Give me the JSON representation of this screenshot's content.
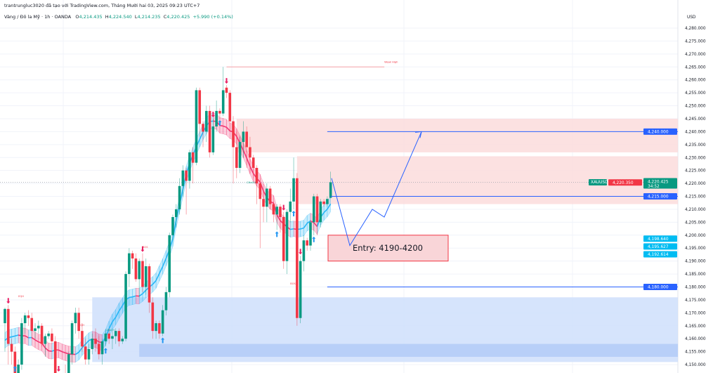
{
  "header": {
    "credit": "trantrungluc3020 đã tạo với TradingView.com, Tháng Mười hai 03, 2025 09:23 UTC+7",
    "symbol_desc": "Vàng / Đô la Mỹ · 1h · OANDA",
    "open_label": "O",
    "open": "4,214.435",
    "high_label": "H",
    "high": "4,224.540",
    "low_label": "L",
    "low": "4,214.235",
    "close_label": "C",
    "close": "4,220.425",
    "change": "+5.990 (+0.14%)"
  },
  "colors": {
    "up": "#089981",
    "down": "#f23645",
    "band_up": "#29b6f6",
    "band_down": "#f23672",
    "supply_zone": "#fbdcdc",
    "demand_zone": "#cfdffb",
    "demand_zone_dark": "#b3cbf7",
    "level_line": "#2962ff",
    "marker_cyan": "#00bcf2"
  },
  "chart_data": {
    "type": "candlestick",
    "symbol": "XAUUSD",
    "timeframe": "1h",
    "currency": "USD",
    "ylim": [
      4148,
      4285
    ],
    "y_ticks": [
      4280,
      4275,
      4270,
      4265,
      4260,
      4255,
      4250,
      4245,
      4240,
      4235,
      4230,
      4225,
      4220,
      4215,
      4210,
      4205,
      4200,
      4195,
      4190,
      4185,
      4180,
      4175,
      4170,
      4165,
      4160,
      4155,
      4150
    ],
    "y_tick_labels": [
      "4,280.000",
      "4,275.000",
      "4,270.000",
      "4,265.000",
      "4,260.000",
      "4,255.000",
      "4,250.000",
      "4,245.000",
      "4,240.000",
      "4,235.000",
      "4,230.000",
      "4,225.000",
      "4,220.000",
      "4,215.000",
      "4,210.000",
      "4,205.000",
      "4,200.000",
      "4,195.000",
      "4,190.000",
      "4,185.000",
      "4,180.000",
      "4,175.000",
      "4,170.000",
      "4,165.000",
      "4,160.000",
      "4,155.000",
      "4,150.000"
    ],
    "grid": true,
    "candles_ohlc": [
      [
        4166,
        4172,
        4155,
        4171.5
      ],
      [
        4171.5,
        4173,
        4150,
        4158
      ],
      [
        4158,
        4160,
        4150,
        4155
      ],
      [
        4155,
        4157,
        4142,
        4146
      ],
      [
        4146,
        4152,
        4140,
        4150
      ],
      [
        4150,
        4168,
        4148,
        4166
      ],
      [
        4166,
        4170,
        4162,
        4169
      ],
      [
        4169,
        4171,
        4165,
        4168
      ],
      [
        4168,
        4170,
        4160,
        4163
      ],
      [
        4163,
        4166,
        4160,
        4164
      ],
      [
        4164,
        4167,
        4162,
        4165
      ],
      [
        4165,
        4166,
        4157,
        4158
      ],
      [
        4158,
        4162,
        4153,
        4161
      ],
      [
        4161,
        4163,
        4160,
        4162
      ],
      [
        4162,
        4164,
        4158,
        4159
      ],
      [
        4159,
        4161,
        4140,
        4143
      ],
      [
        4143,
        4146,
        4132,
        4136
      ],
      [
        4136,
        4146,
        4134,
        4144
      ],
      [
        4144,
        4150,
        4140,
        4142
      ],
      [
        4142,
        4155,
        4138,
        4154
      ],
      [
        4154,
        4167,
        4150,
        4166
      ],
      [
        4166,
        4172,
        4162,
        4170
      ],
      [
        4170,
        4172,
        4160,
        4163
      ],
      [
        4163,
        4166,
        4155,
        4157
      ],
      [
        4157,
        4160,
        4150,
        4152
      ],
      [
        4152,
        4158,
        4150,
        4156
      ],
      [
        4156,
        4162,
        4154,
        4160
      ],
      [
        4160,
        4164,
        4155,
        4158
      ],
      [
        4158,
        4161,
        4152,
        4154
      ],
      [
        4154,
        4160,
        4150,
        4159
      ],
      [
        4159,
        4163,
        4157,
        4162
      ],
      [
        4162,
        4164,
        4158,
        4160
      ],
      [
        4160,
        4163,
        4156,
        4161
      ],
      [
        4161,
        4164,
        4158,
        4163
      ],
      [
        4163,
        4164,
        4157,
        4159
      ],
      [
        4159,
        4161,
        4158,
        4160
      ],
      [
        4160,
        4186,
        4159,
        4185
      ],
      [
        4185,
        4195,
        4180,
        4193
      ],
      [
        4193,
        4194,
        4187,
        4191
      ],
      [
        4191,
        4193,
        4182,
        4183
      ],
      [
        4183,
        4191,
        4176,
        4190
      ],
      [
        4190,
        4193,
        4178,
        4180
      ],
      [
        4180,
        4191,
        4177,
        4188
      ],
      [
        4188,
        4189,
        4170,
        4174
      ],
      [
        4174,
        4176,
        4160,
        4163
      ],
      [
        4163,
        4167,
        4160,
        4166
      ],
      [
        4166,
        4167,
        4160,
        4162
      ],
      [
        4162,
        4173,
        4161,
        4171
      ],
      [
        4171,
        4180,
        4169,
        4178
      ],
      [
        4178,
        4201,
        4176,
        4200
      ],
      [
        4200,
        4208,
        4198,
        4207
      ],
      [
        4207,
        4212,
        4203,
        4210
      ],
      [
        4210,
        4222,
        4208,
        4219
      ],
      [
        4219,
        4227,
        4215,
        4225
      ],
      [
        4225,
        4226,
        4208,
        4221
      ],
      [
        4221,
        4233,
        4218,
        4232
      ],
      [
        4232,
        4234,
        4220,
        4228
      ],
      [
        4228,
        4257,
        4227,
        4256
      ],
      [
        4256,
        4257,
        4238,
        4243
      ],
      [
        4243,
        4244,
        4234,
        4240
      ],
      [
        4240,
        4250,
        4236,
        4248
      ],
      [
        4248,
        4250,
        4230,
        4232
      ],
      [
        4232,
        4245,
        4231,
        4242
      ],
      [
        4242,
        4252,
        4240,
        4248
      ],
      [
        4248,
        4249,
        4245,
        4247
      ],
      [
        4247,
        4265,
        4246,
        4256
      ],
      [
        4257,
        4258,
        4253,
        4255
      ],
      [
        4255,
        4256,
        4240,
        4244
      ],
      [
        4244,
        4246,
        4220,
        4234
      ],
      [
        4234,
        4240,
        4222,
        4226
      ],
      [
        4226,
        4238,
        4224,
        4236
      ],
      [
        4236,
        4244,
        4230,
        4240
      ],
      [
        4240,
        4242,
        4226,
        4234
      ],
      [
        4234,
        4238,
        4224,
        4230
      ],
      [
        4230,
        4231,
        4222,
        4226
      ],
      [
        4226,
        4227,
        4212,
        4220
      ],
      [
        4220,
        4222,
        4195,
        4214
      ],
      [
        4214,
        4217,
        4205,
        4211
      ],
      [
        4211,
        4220,
        4205,
        4218
      ],
      [
        4218,
        4219,
        4210,
        4212
      ],
      [
        4212,
        4213,
        4205,
        4208
      ],
      [
        4208,
        4212,
        4202,
        4211
      ],
      [
        4211,
        4212,
        4201,
        4207
      ],
      [
        4207,
        4209,
        4187,
        4190
      ],
      [
        4190,
        4210,
        4185,
        4209
      ],
      [
        4209,
        4218,
        4205,
        4213
      ],
      [
        4213,
        4230,
        4210,
        4222
      ],
      [
        4222,
        4224,
        4165,
        4168
      ],
      [
        4168,
        4192,
        4166,
        4190
      ],
      [
        4190,
        4200,
        4186,
        4198
      ],
      [
        4198,
        4199,
        4194,
        4196
      ],
      [
        4196,
        4206,
        4194,
        4205
      ],
      [
        4205,
        4216,
        4200,
        4215
      ],
      [
        4215,
        4216,
        4200,
        4205
      ],
      [
        4205,
        4214,
        4203,
        4213
      ],
      [
        4213,
        4214,
        4211,
        4212
      ],
      [
        4212,
        4215,
        4211,
        4214
      ],
      [
        4214.435,
        4224.54,
        4214.235,
        4220.425
      ]
    ],
    "signals": [
      {
        "index": 1,
        "dir": "down"
      },
      {
        "index": 16,
        "dir": "down"
      },
      {
        "index": 3,
        "dir": "up"
      },
      {
        "index": 30,
        "dir": "up"
      },
      {
        "index": 41,
        "dir": "down"
      },
      {
        "index": 47,
        "dir": "up"
      },
      {
        "index": 62,
        "dir": "down"
      },
      {
        "index": 64,
        "dir": "up"
      },
      {
        "index": 66,
        "dir": "down"
      },
      {
        "index": 81,
        "dir": "up"
      },
      {
        "index": 83,
        "dir": "down"
      },
      {
        "index": 86,
        "dir": "up"
      },
      {
        "index": 88,
        "dir": "down"
      },
      {
        "index": 92,
        "dir": "up"
      }
    ],
    "zones": [
      {
        "kind": "supply",
        "from_index": 69,
        "top": 4245,
        "bottom": 4232
      },
      {
        "kind": "supply",
        "from_index": 87,
        "top": 4230.5,
        "bottom": 4212
      },
      {
        "kind": "demand",
        "from_index": 26,
        "top": 4176,
        "bottom": 4151
      },
      {
        "kind": "demand_dark",
        "from_index": 40,
        "top": 4158,
        "bottom": 4153
      }
    ],
    "structure_labels": [
      {
        "text": "EQH",
        "index": 4,
        "price": 4176
      },
      {
        "text": "EQH",
        "index": 22,
        "price": 4165
      },
      {
        "text": "CHoCH",
        "index": 30,
        "price": 4163
      },
      {
        "text": "BOS",
        "index": 41,
        "price": 4195
      },
      {
        "text": "CHoCH",
        "index": 72,
        "price": 4220
      },
      {
        "text": "BOS",
        "index": 85,
        "price": 4181
      },
      {
        "text": "Weak High",
        "index": 113,
        "price": 4266.5
      }
    ],
    "weak_high": 4265,
    "levels": [
      {
        "price": 4240,
        "label": "4,240.000",
        "color": "#2962ff"
      },
      {
        "price": 4215,
        "label": "4,215.000",
        "color": "#2962ff"
      },
      {
        "price": 4180,
        "label": "4,180.000",
        "color": "#2962ff"
      }
    ],
    "entry": {
      "text": "Entry: 4190-4200",
      "top": 4200,
      "bottom": 4190
    },
    "projection_prices": [
      4222,
      4196,
      4210,
      4207,
      4240
    ],
    "current_price": {
      "tag": "XAUUSD",
      "price": 4220.425,
      "label": "4,220.425",
      "countdown": "34:52"
    },
    "axis_flags": [
      {
        "price": 4220.35,
        "label": "4,220.350",
        "color": "#f23645"
      },
      {
        "price": 4198.64,
        "label": "4,198.640",
        "color": "#00bcf2"
      },
      {
        "price": 4195.627,
        "label": "4,195.627",
        "color": "#00bcf2"
      },
      {
        "price": 4192.614,
        "label": "4,192.614",
        "color": "#00bcf2"
      }
    ]
  }
}
